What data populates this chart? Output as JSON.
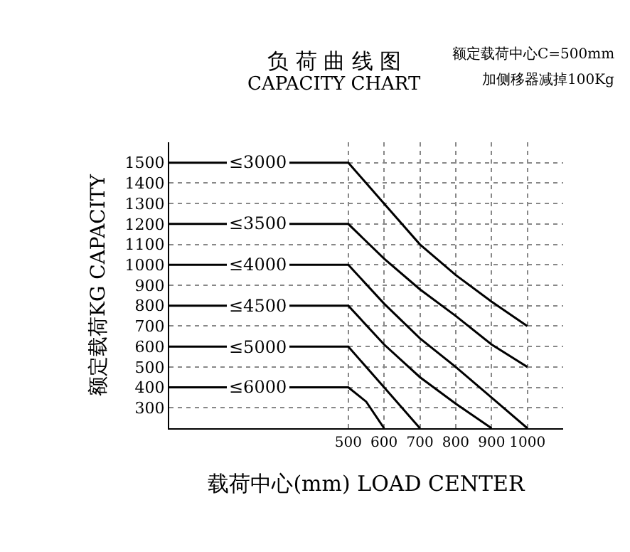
{
  "chart_data": {
    "type": "line",
    "title": "负 荷 曲 线 图",
    "subtitle": "CAPACITY CHART",
    "xlabel": "载荷中心(mm) LOAD CENTER",
    "ylabel": "额定载荷KG CAPACITY",
    "annotations": [
      "额定载荷中心C=500mm",
      "加侧移器减掉100Kg"
    ],
    "series": [
      {
        "name": "≤3000",
        "color": "#000000",
        "x": [
          0,
          500,
          600,
          700,
          800,
          900,
          1000
        ],
        "values": [
          1500,
          1500,
          1300,
          1100,
          950,
          820,
          700
        ]
      },
      {
        "name": "≤3500",
        "color": "#000000",
        "x": [
          0,
          500,
          600,
          700,
          800,
          900,
          1000
        ],
        "values": [
          1200,
          1200,
          1030,
          880,
          750,
          610,
          500
        ]
      },
      {
        "name": "≤4000",
        "color": "#000000",
        "x": [
          0,
          500,
          600,
          700,
          800,
          900,
          1000
        ],
        "values": [
          1000,
          1000,
          810,
          640,
          500,
          350,
          200
        ]
      },
      {
        "name": "≤4500",
        "color": "#000000",
        "x": [
          0,
          500,
          600,
          700,
          800,
          900
        ],
        "values": [
          800,
          800,
          610,
          450,
          320,
          200
        ]
      },
      {
        "name": "≤5000",
        "color": "#000000",
        "x": [
          0,
          500,
          600,
          700
        ],
        "values": [
          600,
          600,
          400,
          200
        ]
      },
      {
        "name": "≤6000",
        "color": "#000000",
        "x": [
          0,
          500,
          550,
          600
        ],
        "values": [
          400,
          400,
          330,
          200
        ]
      }
    ],
    "xlim": [
      0,
      1100
    ],
    "xticks": [
      500,
      600,
      700,
      800,
      900,
      1000
    ],
    "ylim": [
      200,
      1600
    ],
    "yticks": [
      300,
      400,
      500,
      600,
      700,
      800,
      900,
      1000,
      1100,
      1200,
      1300,
      1400,
      1500
    ],
    "grid": true,
    "legend": false,
    "marker": "none",
    "line_style": "solid"
  }
}
